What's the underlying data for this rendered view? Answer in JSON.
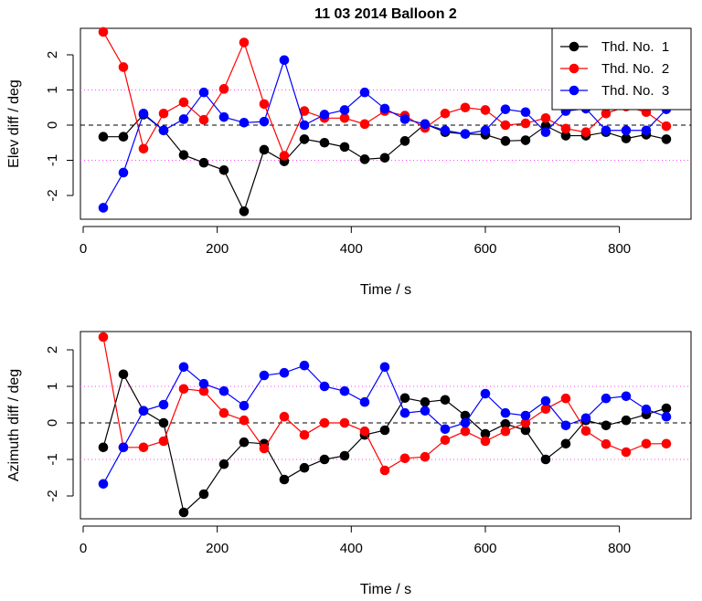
{
  "chart_data": [
    {
      "type": "line",
      "title": "11 03 2014 Balloon  2",
      "xlabel": "Time / s",
      "ylabel": "Elev diff / deg",
      "xlim": [
        0,
        900
      ],
      "ylim": [
        -2.6,
        2.7
      ],
      "xticks": [
        "0",
        "200",
        "400",
        "600",
        "800"
      ],
      "yticks": [
        "-2",
        "-1",
        "0",
        "1",
        "2"
      ],
      "reference_lines": {
        "dashed_black": 0,
        "dotted_magenta": [
          -1,
          1
        ]
      },
      "legend": "top-right",
      "x": [
        30,
        60,
        90,
        120,
        150,
        180,
        210,
        240,
        270,
        300,
        330,
        360,
        390,
        420,
        450,
        480,
        510,
        540,
        570,
        600,
        630,
        660,
        690,
        720,
        750,
        780,
        810,
        840,
        870
      ],
      "series": [
        {
          "name": "Thd. No.  1",
          "color": "#000000",
          "values": [
            -0.33,
            -0.33,
            0.3,
            -0.15,
            -0.85,
            -1.07,
            -1.28,
            -2.45,
            -0.7,
            -1.03,
            -0.4,
            -0.5,
            -0.62,
            -0.97,
            -0.93,
            -0.45,
            0.03,
            -0.2,
            -0.25,
            -0.27,
            -0.45,
            -0.43,
            -0.02,
            -0.3,
            -0.3,
            -0.2,
            -0.38,
            -0.27,
            -0.4
          ]
        },
        {
          "name": "Thd. No.  2",
          "color": "#ff0000",
          "values": [
            2.65,
            1.65,
            -0.67,
            0.33,
            0.65,
            0.15,
            1.03,
            2.35,
            0.6,
            -0.87,
            0.4,
            0.2,
            0.2,
            0.03,
            0.4,
            0.27,
            -0.08,
            0.33,
            0.5,
            0.43,
            0.0,
            0.05,
            0.2,
            -0.1,
            -0.2,
            0.33,
            0.53,
            0.37,
            -0.03
          ]
        },
        {
          "name": "Thd. No.  3",
          "color": "#0000ff",
          "values": [
            -2.35,
            -1.35,
            0.33,
            -0.15,
            0.17,
            0.93,
            0.23,
            0.07,
            0.1,
            1.85,
            0.0,
            0.3,
            0.43,
            0.93,
            0.47,
            0.17,
            0.03,
            -0.15,
            -0.25,
            -0.15,
            0.45,
            0.37,
            -0.2,
            0.4,
            0.47,
            -0.15,
            -0.15,
            -0.15,
            0.45
          ]
        }
      ]
    },
    {
      "type": "line",
      "xlabel": "Time / s",
      "ylabel": "Azimuth diff / deg",
      "xlim": [
        0,
        900
      ],
      "ylim": [
        -2.6,
        2.6
      ],
      "xticks": [
        "0",
        "200",
        "400",
        "600",
        "800"
      ],
      "yticks": [
        "-2",
        "-1",
        "0",
        "1",
        "2"
      ],
      "reference_lines": {
        "dashed_black": 0,
        "dotted_magenta": [
          -1,
          1
        ]
      },
      "x": [
        30,
        60,
        90,
        120,
        150,
        180,
        210,
        240,
        270,
        300,
        330,
        360,
        390,
        420,
        450,
        480,
        510,
        540,
        570,
        600,
        630,
        660,
        690,
        720,
        750,
        780,
        810,
        840,
        870
      ],
      "series": [
        {
          "color": "#000000",
          "values": [
            -0.67,
            1.33,
            0.33,
            0.0,
            -2.45,
            -1.95,
            -1.13,
            -0.53,
            -0.57,
            -1.55,
            -1.23,
            -1.0,
            -0.9,
            -0.33,
            -0.2,
            0.68,
            0.57,
            0.63,
            0.2,
            -0.3,
            -0.03,
            -0.2,
            -1.0,
            -0.57,
            0.07,
            -0.07,
            0.07,
            0.23,
            0.4
          ]
        },
        {
          "color": "#ff0000",
          "values": [
            2.35,
            -0.67,
            -0.67,
            -0.5,
            0.93,
            0.87,
            0.27,
            0.07,
            -0.7,
            0.17,
            -0.33,
            0.0,
            0.0,
            -0.23,
            -1.3,
            -0.97,
            -0.93,
            -0.47,
            -0.23,
            -0.5,
            -0.23,
            0.0,
            0.38,
            0.67,
            -0.22,
            -0.58,
            -0.8,
            -0.57,
            -0.57
          ]
        },
        {
          "color": "#0000ff",
          "values": [
            -1.67,
            -0.67,
            0.33,
            0.5,
            1.53,
            1.07,
            0.87,
            0.47,
            1.3,
            1.37,
            1.57,
            1.0,
            0.87,
            0.57,
            1.53,
            0.27,
            0.33,
            -0.17,
            0.0,
            0.8,
            0.27,
            0.2,
            0.6,
            -0.07,
            0.13,
            0.67,
            0.73,
            0.37,
            0.17
          ]
        }
      ]
    }
  ]
}
